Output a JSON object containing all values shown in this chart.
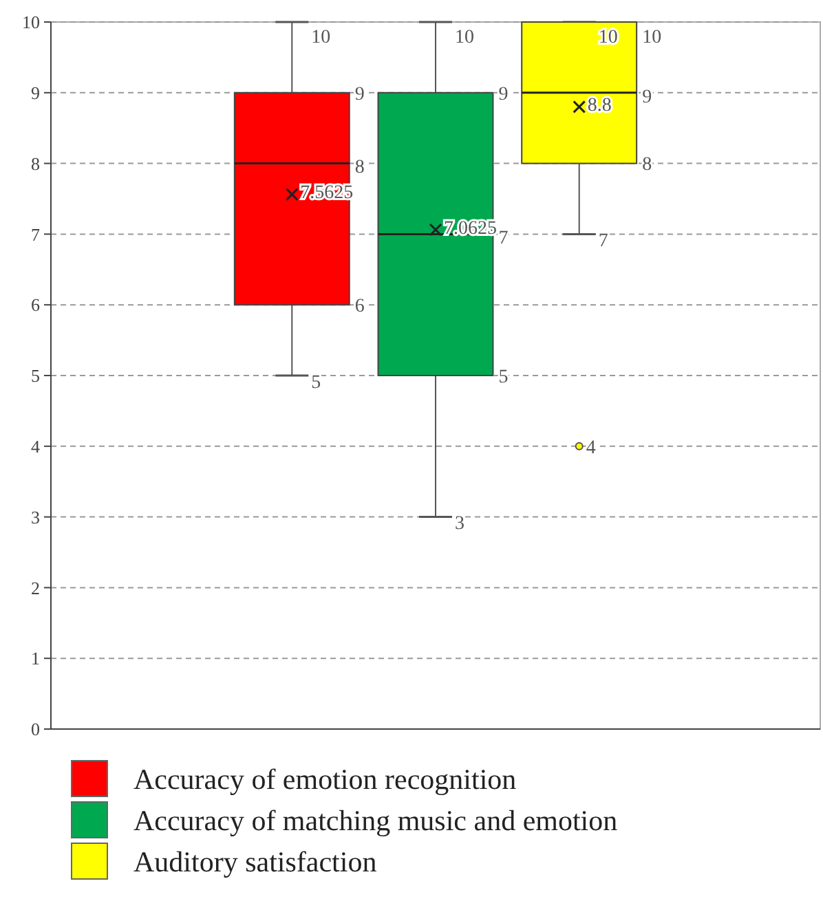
{
  "chart_data": {
    "type": "box",
    "categories": [
      null
    ],
    "series": [
      {
        "name": "Accuracy of emotion recognition",
        "color": "#ff0000",
        "boxes": [
          {
            "low": 5,
            "q1": 6,
            "median": 8,
            "q3": 9,
            "high": 10,
            "mean": 7.5625
          }
        ]
      },
      {
        "name": "Accuracy of matching music and emotion",
        "color": "#00a84f",
        "boxes": [
          {
            "low": 3,
            "q1": 5,
            "median": 7,
            "q3": 9,
            "high": 10,
            "mean": 7.0625
          }
        ]
      },
      {
        "name": "Auditory satisfaction",
        "color": "#ffff00",
        "boxes": [
          {
            "low": 7,
            "q1": 8,
            "median": 9,
            "q3": 10,
            "high": 10,
            "mean": 8.8,
            "outliers": [
              4
            ]
          }
        ]
      }
    ],
    "annotations": [
      "10",
      "9",
      "8",
      "6",
      "5",
      "7.5625",
      "10",
      "9",
      "7",
      "5",
      "3",
      "7.0625",
      "10",
      "10",
      "9",
      "8",
      "7",
      "8.8",
      "4"
    ],
    "ylim": [
      0,
      10
    ],
    "yticks": [
      0,
      1,
      2,
      3,
      4,
      5,
      6,
      7,
      8,
      9,
      10
    ],
    "grid": "y",
    "legend": "bottom"
  }
}
